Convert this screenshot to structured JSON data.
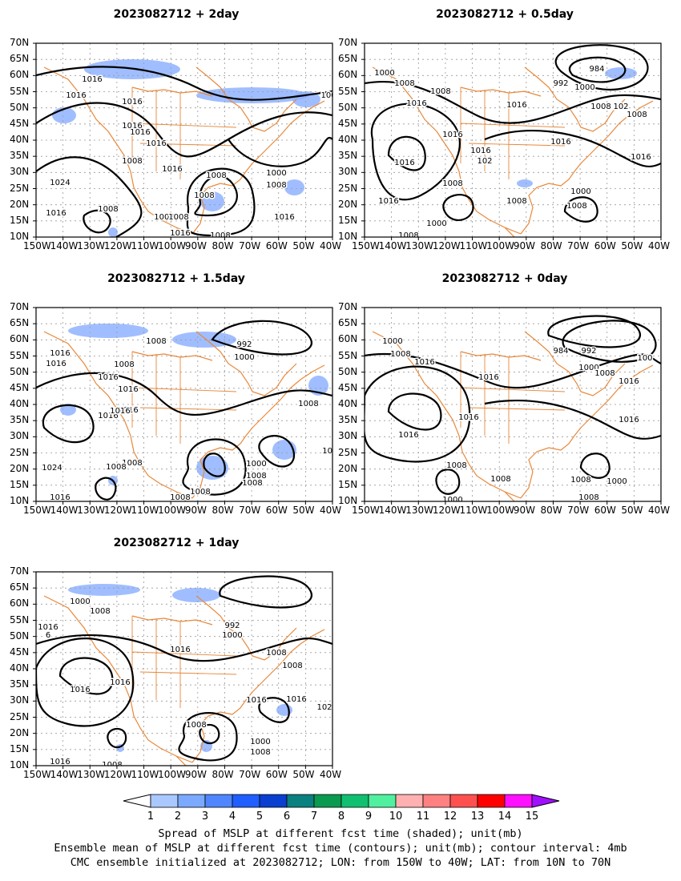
{
  "panels": [
    {
      "id": "p2day",
      "title": "2023082712  +  2day"
    },
    {
      "id": "p05day",
      "title": "2023082712  +  0.5day"
    },
    {
      "id": "p15day",
      "title": "2023082712  +  1.5day"
    },
    {
      "id": "p0day",
      "title": "2023082712  +  0day"
    },
    {
      "id": "p1day",
      "title": "2023082712  +  1day"
    }
  ],
  "axes": {
    "lat_labels": [
      "70N",
      "65N",
      "60N",
      "55N",
      "50N",
      "45N",
      "40N",
      "35N",
      "30N",
      "25N",
      "20N",
      "15N",
      "10N"
    ],
    "lon_labels": [
      "150W",
      "140W",
      "130W",
      "120W",
      "110W",
      "100W",
      "90W",
      "80W",
      "70W",
      "60W",
      "50W",
      "40W"
    ]
  },
  "colorbar": {
    "labels": [
      "1",
      "2",
      "3",
      "4",
      "5",
      "6",
      "7",
      "8",
      "9",
      "10",
      "11",
      "12",
      "13",
      "14",
      "15"
    ],
    "colors": [
      "#ffffff",
      "#a9c8ff",
      "#7aa9ff",
      "#4f86ff",
      "#1f5fff",
      "#0a3fd0",
      "#0a8080",
      "#0a9a50",
      "#10c070",
      "#50f0a0",
      "#ffb0b0",
      "#ff8080",
      "#ff5050",
      "#ff0000",
      "#ff10ff",
      "#a010ff"
    ]
  },
  "map_labels": {
    "p2day": [
      "1016",
      "1016",
      "1016",
      "1016",
      "1016",
      "1016",
      "1008",
      "1016",
      "1008",
      "1024",
      "1008",
      "1016",
      "1008",
      "1016",
      "1000",
      "1008",
      "1008",
      "1016",
      "1008",
      "1008",
      "100"
    ],
    "p05day": [
      "1000",
      "1008",
      "1008",
      "1016",
      "984",
      "992",
      "1000",
      "1008",
      "1016",
      "1016",
      "1016",
      "1016",
      "1016",
      "1008",
      "1016",
      "1008",
      "1000",
      "1008",
      "1008",
      "1008",
      "1000",
      "1008",
      "1016",
      "102",
      "102"
    ],
    "p15day": [
      "1016",
      "1016",
      "1008",
      "1008",
      "992",
      "1000",
      "1016",
      "1016",
      "1016",
      "1016",
      "1008",
      "1008",
      "1024",
      "1016",
      "1008",
      "1008",
      "1000",
      "1008",
      "1008",
      "1008",
      "1016",
      "1024",
      "1008",
      "1016",
      "1008"
    ],
    "p0day": [
      "1000",
      "1008",
      "1016",
      "984",
      "992",
      "1000",
      "1008",
      "1016",
      "1016",
      "1016",
      "1016",
      "1016",
      "1008",
      "1008",
      "1000",
      "1008",
      "1000",
      "1008",
      "1008",
      "100"
    ],
    "p1day": [
      "1000",
      "1008",
      "1016",
      "6",
      "1016",
      "992",
      "1000",
      "1008",
      "1008",
      "1016",
      "1016",
      "1016",
      "1016",
      "1008",
      "1016",
      "1008",
      "1000",
      "1008",
      "1008",
      "102"
    ]
  },
  "footer": {
    "line1": "Spread of MSLP at different fcst time (shaded); unit(mb)",
    "line2": "Ensemble mean of MSLP at different fcst time (contours); unit(mb); contour interval: 4mb",
    "line3": "CMC ensemble initialized at 2023082712; LON: from 150W to 40W; LAT: from 10N to 70N"
  }
}
